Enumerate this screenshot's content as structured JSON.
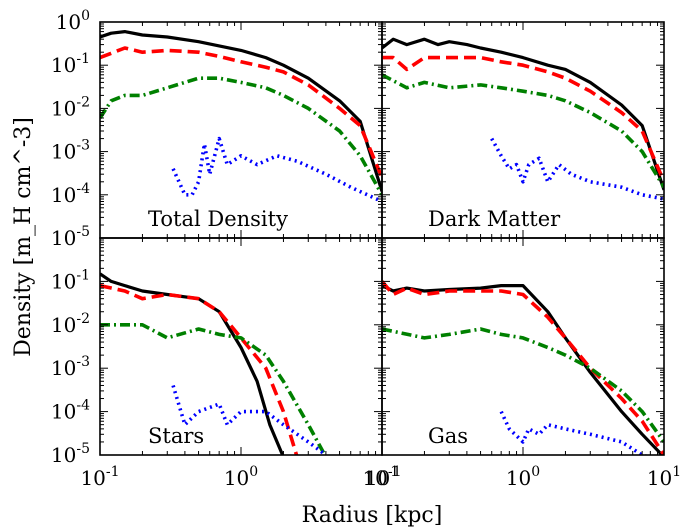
{
  "figure": {
    "ylabel": "Density [m_H cm^-3]",
    "xlabel": "Radius [kpc]",
    "x_tick_labels": [
      "10^-1",
      "10^0",
      "10^1"
    ],
    "y_tick_labels": [
      "10^-5",
      "10^-4",
      "10^-3",
      "10^-2",
      "10^-1",
      "10^0"
    ]
  },
  "chart_data": [
    {
      "type": "line",
      "title": "Total Density",
      "xscale": "log",
      "yscale": "log",
      "xlim": [
        0.1,
        10
      ],
      "ylim": [
        1e-05,
        1
      ],
      "series": [
        {
          "color": "#000000",
          "dash": "solid",
          "x": [
            0.1,
            0.12,
            0.15,
            0.2,
            0.3,
            0.5,
            0.7,
            1.0,
            1.5,
            2.0,
            3.0,
            5.0,
            7.0,
            10.0
          ],
          "y": [
            0.45,
            0.55,
            0.6,
            0.5,
            0.45,
            0.35,
            0.28,
            0.22,
            0.15,
            0.1,
            0.05,
            0.015,
            0.005,
            0.00012
          ]
        },
        {
          "color": "#ff0000",
          "dash": "dashed",
          "x": [
            0.1,
            0.15,
            0.2,
            0.3,
            0.5,
            0.7,
            1.0,
            1.5,
            2.0,
            3.0,
            5.0,
            7.0,
            10.0
          ],
          "y": [
            0.15,
            0.25,
            0.2,
            0.22,
            0.2,
            0.16,
            0.12,
            0.09,
            0.07,
            0.035,
            0.01,
            0.004,
            0.00025
          ]
        },
        {
          "color": "#008000",
          "dash": "dashdot",
          "x": [
            0.1,
            0.12,
            0.15,
            0.2,
            0.3,
            0.5,
            0.7,
            1.0,
            1.5,
            2.0,
            3.0,
            5.0,
            7.0,
            10.0
          ],
          "y": [
            0.006,
            0.015,
            0.02,
            0.02,
            0.03,
            0.05,
            0.05,
            0.04,
            0.03,
            0.02,
            0.01,
            0.003,
            0.0008,
            0.0001
          ]
        },
        {
          "color": "#0000ff",
          "dash": "dotted",
          "x": [
            0.33,
            0.4,
            0.45,
            0.5,
            0.55,
            0.6,
            0.7,
            0.8,
            1.0,
            1.3,
            1.8,
            2.5,
            4.0,
            6.0,
            10.0
          ],
          "y": [
            0.0004,
            0.0001,
            0.0001,
            0.0002,
            0.0015,
            0.0003,
            0.002,
            0.0005,
            0.0008,
            0.0005,
            0.0008,
            0.0006,
            0.0003,
            0.00015,
            7e-05
          ]
        }
      ]
    },
    {
      "type": "line",
      "title": "Dark Matter",
      "xscale": "log",
      "yscale": "log",
      "xlim": [
        0.1,
        10
      ],
      "ylim": [
        1e-05,
        1
      ],
      "series": [
        {
          "color": "#000000",
          "dash": "solid",
          "x": [
            0.1,
            0.12,
            0.15,
            0.2,
            0.25,
            0.3,
            0.4,
            0.5,
            0.7,
            1.0,
            1.5,
            2.0,
            3.0,
            5.0,
            7.0,
            10.0
          ],
          "y": [
            0.25,
            0.4,
            0.3,
            0.4,
            0.3,
            0.35,
            0.3,
            0.25,
            0.2,
            0.15,
            0.1,
            0.08,
            0.04,
            0.012,
            0.004,
            0.00013
          ]
        },
        {
          "color": "#ff0000",
          "dash": "dashed",
          "x": [
            0.1,
            0.12,
            0.15,
            0.2,
            0.3,
            0.5,
            0.7,
            1.0,
            1.5,
            2.0,
            3.0,
            5.0,
            7.0,
            10.0
          ],
          "y": [
            0.15,
            0.15,
            0.08,
            0.15,
            0.15,
            0.15,
            0.12,
            0.1,
            0.07,
            0.05,
            0.025,
            0.008,
            0.003,
            0.0002
          ]
        },
        {
          "color": "#008000",
          "dash": "dashdot",
          "x": [
            0.1,
            0.15,
            0.2,
            0.3,
            0.5,
            0.7,
            1.0,
            1.5,
            2.0,
            3.0,
            5.0,
            7.0,
            10.0
          ],
          "y": [
            0.06,
            0.03,
            0.04,
            0.03,
            0.035,
            0.03,
            0.025,
            0.02,
            0.015,
            0.008,
            0.003,
            0.001,
            0.00015
          ]
        },
        {
          "color": "#0000ff",
          "dash": "dotted",
          "x": [
            0.6,
            0.7,
            0.8,
            0.9,
            1.0,
            1.1,
            1.3,
            1.5,
            1.8,
            2.2,
            3.0,
            5.0,
            7.0,
            10.0
          ],
          "y": [
            0.002,
            0.0008,
            0.0004,
            0.0005,
            0.0002,
            0.0005,
            0.0007,
            0.0002,
            0.0005,
            0.0003,
            0.0002,
            0.00015,
            0.0001,
            8e-05
          ]
        }
      ]
    },
    {
      "type": "line",
      "title": "Stars",
      "xscale": "log",
      "yscale": "log",
      "xlim": [
        0.1,
        10
      ],
      "ylim": [
        1e-05,
        1
      ],
      "series": [
        {
          "color": "#000000",
          "dash": "solid",
          "x": [
            0.1,
            0.12,
            0.15,
            0.2,
            0.3,
            0.5,
            0.7,
            1.0,
            1.3,
            1.6,
            2.0
          ],
          "y": [
            0.15,
            0.1,
            0.08,
            0.06,
            0.05,
            0.04,
            0.02,
            0.003,
            0.0005,
            5e-05,
            9e-06
          ]
        },
        {
          "color": "#ff0000",
          "dash": "dashed",
          "x": [
            0.1,
            0.15,
            0.2,
            0.3,
            0.5,
            0.7,
            1.0,
            1.5,
            2.0,
            2.5
          ],
          "y": [
            0.08,
            0.06,
            0.04,
            0.05,
            0.04,
            0.02,
            0.005,
            0.001,
            0.0001,
            9e-06
          ]
        },
        {
          "color": "#008000",
          "dash": "dashdot",
          "x": [
            0.1,
            0.2,
            0.3,
            0.5,
            0.7,
            1.0,
            1.5,
            2.0,
            3.0,
            4.0
          ],
          "y": [
            0.01,
            0.01,
            0.005,
            0.008,
            0.006,
            0.005,
            0.002,
            0.0005,
            5e-05,
            9e-06
          ]
        },
        {
          "color": "#0000ff",
          "dash": "dotted",
          "x": [
            0.33,
            0.4,
            0.5,
            0.7,
            0.8,
            1.0,
            1.5,
            2.0,
            3.0,
            4.0
          ],
          "y": [
            0.0004,
            5e-05,
            0.0001,
            0.00015,
            5e-05,
            0.0001,
            0.0001,
            5e-05,
            2e-05,
            1e-05
          ]
        }
      ]
    },
    {
      "type": "line",
      "title": "Gas",
      "xscale": "log",
      "yscale": "log",
      "xlim": [
        0.1,
        10
      ],
      "ylim": [
        1e-05,
        1
      ],
      "series": [
        {
          "color": "#000000",
          "dash": "solid",
          "x": [
            0.1,
            0.12,
            0.15,
            0.2,
            0.3,
            0.5,
            0.7,
            1.0,
            1.5,
            2.0,
            3.0,
            5.0,
            7.0,
            10.0
          ],
          "y": [
            0.08,
            0.06,
            0.07,
            0.06,
            0.065,
            0.07,
            0.08,
            0.08,
            0.02,
            0.005,
            0.0008,
            0.0001,
            3e-05,
            9e-06
          ]
        },
        {
          "color": "#ff0000",
          "dash": "dashed",
          "x": [
            0.1,
            0.12,
            0.15,
            0.2,
            0.3,
            0.5,
            0.7,
            1.0,
            1.5,
            2.0,
            3.0,
            5.0,
            7.0,
            10.0
          ],
          "y": [
            0.1,
            0.05,
            0.07,
            0.05,
            0.06,
            0.06,
            0.06,
            0.05,
            0.015,
            0.005,
            0.001,
            0.0002,
            6e-05,
            1e-05
          ]
        },
        {
          "color": "#008000",
          "dash": "dashdot",
          "x": [
            0.1,
            0.2,
            0.3,
            0.5,
            0.7,
            1.0,
            1.5,
            2.0,
            3.0,
            5.0,
            7.0,
            10.0
          ],
          "y": [
            0.008,
            0.005,
            0.006,
            0.008,
            0.006,
            0.005,
            0.003,
            0.002,
            0.001,
            0.0003,
            0.0001,
            2e-05
          ]
        },
        {
          "color": "#0000ff",
          "dash": "dotted",
          "x": [
            0.7,
            0.8,
            1.0,
            1.1,
            1.3,
            1.5,
            2.0,
            3.0,
            5.0,
            7.0,
            10.0
          ],
          "y": [
            0.0001,
            4e-05,
            2e-05,
            4e-05,
            3e-05,
            5e-05,
            4e-05,
            3e-05,
            2e-05,
            1e-05,
            7e-06
          ]
        }
      ]
    }
  ]
}
